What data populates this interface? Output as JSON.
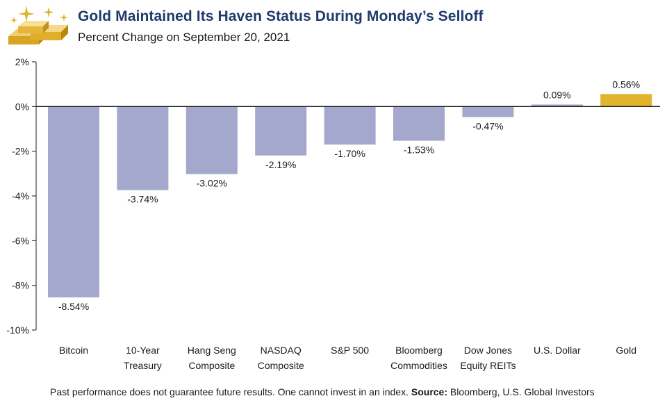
{
  "header": {
    "title": "Gold Maintained Its Haven Status During Monday’s Selloff",
    "subtitle": "Percent Change on September 20, 2021"
  },
  "footer": {
    "disclaimer": "Past performance does not guarantee future results. One cannot invest in an index.",
    "source_label": "Source:",
    "source_text": "Bloomberg, U.S. Global Investors"
  },
  "colors": {
    "negative_bar": "#a3a8cc",
    "highlight_bar": "#e2b32c",
    "title": "#1f3a6b",
    "axis": "#1a1a1a"
  },
  "icons": {
    "logo": "gold-bars-icon"
  },
  "chart_data": {
    "type": "bar",
    "title": "Gold Maintained Its Haven Status During Monday’s Selloff",
    "subtitle": "Percent Change on September 20, 2021",
    "categories": [
      [
        "Bitcoin"
      ],
      [
        "10-Year",
        "Treasury"
      ],
      [
        "Hang Seng",
        "Composite"
      ],
      [
        "NASDAQ",
        "Composite"
      ],
      [
        "S&P 500"
      ],
      [
        "Bloomberg",
        "Commodities"
      ],
      [
        "Dow Jones",
        "Equity REITs"
      ],
      [
        "U.S. Dollar"
      ],
      [
        "Gold"
      ]
    ],
    "values": [
      -8.54,
      -3.74,
      -3.02,
      -2.19,
      -1.7,
      -1.53,
      -0.47,
      0.09,
      0.56
    ],
    "data_labels": [
      "-8.54%",
      "-3.74%",
      "-3.02%",
      "-2.19%",
      "-1.70%",
      "-1.53%",
      "-0.47%",
      "0.09%",
      "0.56%"
    ],
    "highlight_category": "Gold",
    "ylim": [
      -10,
      2
    ],
    "yticks": [
      2,
      0,
      -2,
      -4,
      -6,
      -8,
      -10
    ],
    "ytick_labels": [
      "2%",
      "0%",
      "-2%",
      "-4%",
      "-6%",
      "-8%",
      "-10%"
    ],
    "xlabel": "",
    "ylabel": "",
    "grid": false,
    "legend": "none"
  }
}
